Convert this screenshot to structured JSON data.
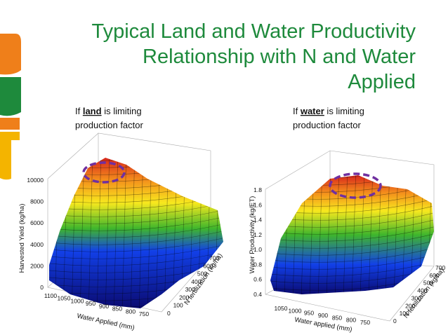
{
  "header": {
    "title": [
      "Typical Land and Water Productivity",
      "Relationship with N and Water",
      "Applied"
    ]
  },
  "panels": [
    {
      "caption": {
        "prefix": "If ",
        "keyword": "land",
        "suffix": " is limiting",
        "line2": "production factor"
      },
      "z_label": "Harvested Yield (kg/ha)",
      "x_label": "Water Applied (mm)",
      "y_label": "N fertilization (kg/ha)",
      "z_ticks": [
        "0",
        "2000",
        "4000",
        "6000",
        "8000",
        "10000"
      ],
      "x_ticks": [
        "1100",
        "1050",
        "1000",
        "950",
        "900",
        "850",
        "800",
        "750"
      ],
      "y_ticks": [
        "0",
        "100",
        "200",
        "300",
        "400",
        "500",
        "600",
        "700"
      ]
    },
    {
      "caption": {
        "prefix": "If ",
        "keyword": "water",
        "suffix": " is limiting",
        "line2": "production factor"
      },
      "z_label": "Water Productivity (kg/ET)",
      "x_label": "Water applied (mm)",
      "y_label": "N fertilization (kg/ha)",
      "z_ticks": [
        "0.4",
        "0.6",
        "0.8",
        "1.0",
        "1.2",
        "1.4",
        "1.6",
        "1.8"
      ],
      "x_ticks": [
        "1050",
        "1000",
        "950",
        "900",
        "850",
        "800",
        "750"
      ],
      "y_ticks": [
        "0",
        "100",
        "200",
        "300",
        "400",
        "500",
        "600",
        "700"
      ]
    }
  ]
}
